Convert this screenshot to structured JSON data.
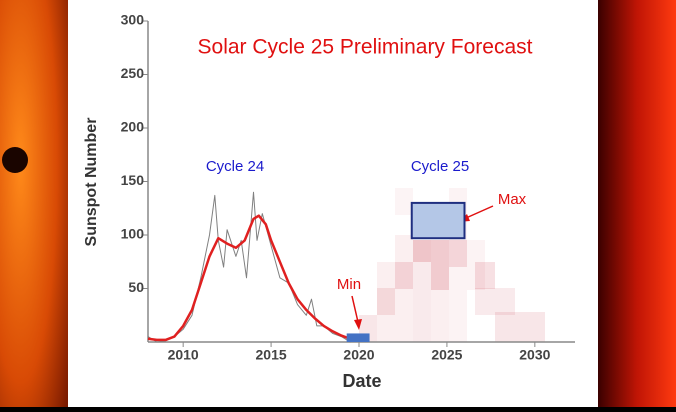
{
  "chart_data": {
    "type": "line",
    "title": "Solar Cycle 25 Preliminary Forecast",
    "y_label": "Sunspot Number",
    "x_label": "Date",
    "xlim": [
      2008,
      2032
    ],
    "ylim": [
      0,
      300
    ],
    "xticks": [
      2010,
      2015,
      2020,
      2025,
      2030
    ],
    "yticks": [
      50,
      100,
      150,
      200,
      250,
      300
    ],
    "series": [
      {
        "color": "#808080",
        "x": [
          2008,
          2008.5,
          2009,
          2009.5,
          2010,
          2010.5,
          2011,
          2011.5,
          2011.8,
          2012,
          2012.3,
          2012.5,
          2013,
          2013.3,
          2013.6,
          2014,
          2014.2,
          2014.5,
          2015,
          2015.5,
          2016,
          2016.5,
          2017,
          2017.3,
          2017.6,
          2018,
          2018.5,
          2019,
          2019.5,
          2020
        ],
        "values": [
          5,
          0,
          1,
          5,
          12,
          25,
          60,
          100,
          137,
          95,
          70,
          105,
          80,
          95,
          60,
          140,
          95,
          120,
          90,
          60,
          55,
          35,
          25,
          40,
          15,
          15,
          8,
          5,
          0,
          5
        ]
      },
      {
        "color": "#e02020",
        "x": [
          2008,
          2008.5,
          2009,
          2009.5,
          2010,
          2010.5,
          2011,
          2011.5,
          2012,
          2012.5,
          2013,
          2013.5,
          2014,
          2014.3,
          2014.7,
          2015,
          2015.5,
          2016,
          2016.5,
          2017,
          2017.5,
          2018,
          2018.5,
          2019,
          2019.5,
          2020
        ],
        "values": [
          3,
          2,
          2,
          5,
          15,
          30,
          55,
          80,
          97,
          92,
          88,
          95,
          115,
          118,
          110,
          95,
          75,
          55,
          40,
          30,
          22,
          15,
          10,
          6,
          3,
          2
        ]
      }
    ],
    "annotations": {
      "cycle24": "Cycle 24",
      "cycle25": "Cycle 25",
      "min": {
        "text": "Min",
        "x": [
          2019.3,
          2020.6
        ],
        "y": [
          0,
          8
        ]
      },
      "max": {
        "text": "Max",
        "x": [
          2023,
          2026
        ],
        "y": [
          97,
          130
        ]
      }
    }
  }
}
